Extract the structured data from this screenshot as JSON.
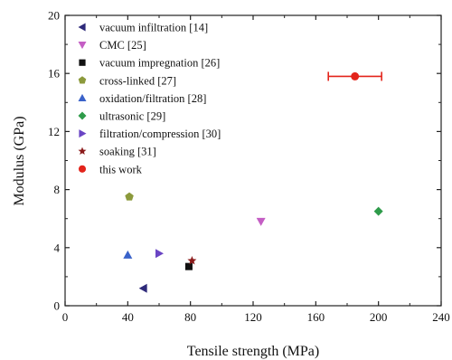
{
  "chart_data": {
    "type": "scatter",
    "xlabel": "Tensile strength (MPa)",
    "ylabel": "Modulus (GPa)",
    "xlim": [
      0,
      240
    ],
    "ylim": [
      0,
      20
    ],
    "x_ticks": [
      0,
      40,
      80,
      120,
      160,
      200,
      240
    ],
    "y_ticks": [
      0,
      4,
      8,
      12,
      16,
      20
    ],
    "grid": false,
    "legend_position": "top-left",
    "series": [
      {
        "name": "vacuum infiltration [14]",
        "marker": "triangle-left",
        "color": "#2e2a7a",
        "points": [
          {
            "x": 50,
            "y": 1.2
          }
        ]
      },
      {
        "name": "CMC [25]",
        "marker": "triangle-down",
        "color": "#c45ec4",
        "points": [
          {
            "x": 125,
            "y": 5.8
          }
        ]
      },
      {
        "name": "vacuum impregnation [26]",
        "marker": "square",
        "color": "#111111",
        "points": [
          {
            "x": 79,
            "y": 2.7
          }
        ]
      },
      {
        "name": "cross-linked [27]",
        "marker": "pentagon",
        "color": "#8c9a3c",
        "points": [
          {
            "x": 41,
            "y": 7.5
          }
        ]
      },
      {
        "name": "oxidation/filtration [28]",
        "marker": "triangle-up",
        "color": "#3a62c9",
        "points": [
          {
            "x": 40,
            "y": 3.5
          }
        ]
      },
      {
        "name": "ultrasonic [29]",
        "marker": "diamond",
        "color": "#2e9b4a",
        "points": [
          {
            "x": 200,
            "y": 6.5
          }
        ]
      },
      {
        "name": "filtration/compression [30]",
        "marker": "triangle-right",
        "color": "#6a45c4",
        "points": [
          {
            "x": 60,
            "y": 3.6
          }
        ]
      },
      {
        "name": "soaking [31]",
        "marker": "star",
        "color": "#8b1a1a",
        "points": [
          {
            "x": 81,
            "y": 3.1
          }
        ]
      },
      {
        "name": "this work",
        "marker": "circle",
        "color": "#e3241b",
        "points": [
          {
            "x": 185,
            "y": 15.8,
            "xerr": [
              168,
              202
            ]
          }
        ]
      }
    ]
  }
}
